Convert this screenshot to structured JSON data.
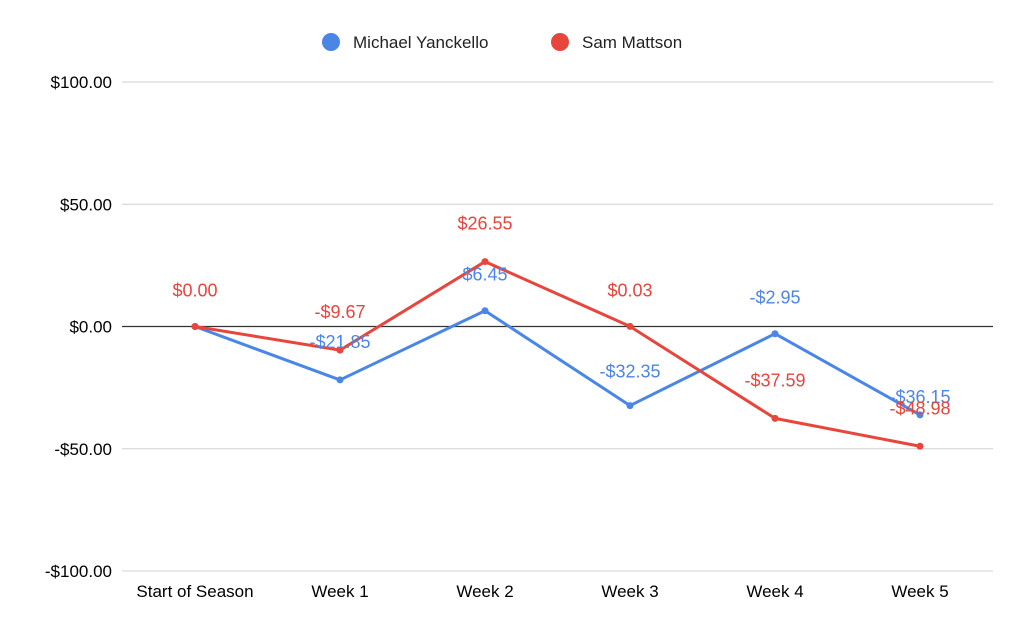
{
  "chart_data": {
    "type": "line",
    "title": "",
    "xlabel": "",
    "ylabel": "",
    "categories": [
      "Start of Season",
      "Week 1",
      "Week 2",
      "Week 3",
      "Week 4",
      "Week 5"
    ],
    "ylim": [
      -100,
      100
    ],
    "yticks": [
      100,
      50,
      0,
      -50,
      -100
    ],
    "ytick_labels": [
      "$100.00",
      "$50.00",
      "$0.00",
      "-$50.00",
      "-$100.00"
    ],
    "grid": true,
    "legend_position": "top-center",
    "series": [
      {
        "name": "Michael Yanckello",
        "color": "#4a86e8",
        "values": [
          0,
          -21.85,
          6.45,
          -32.35,
          -2.95,
          -36.15
        ],
        "labels": [
          "",
          "-$21.85",
          "$6.45",
          "-$32.35",
          "-$2.95",
          "-$36.15"
        ]
      },
      {
        "name": "Sam Mattson",
        "color": "#e8453c",
        "values": [
          0,
          -9.67,
          26.55,
          0.03,
          -37.59,
          -48.98
        ],
        "labels": [
          "$0.00",
          "-$9.67",
          "$26.55",
          "$0.03",
          "-$37.59",
          "-$48.98"
        ]
      }
    ]
  }
}
